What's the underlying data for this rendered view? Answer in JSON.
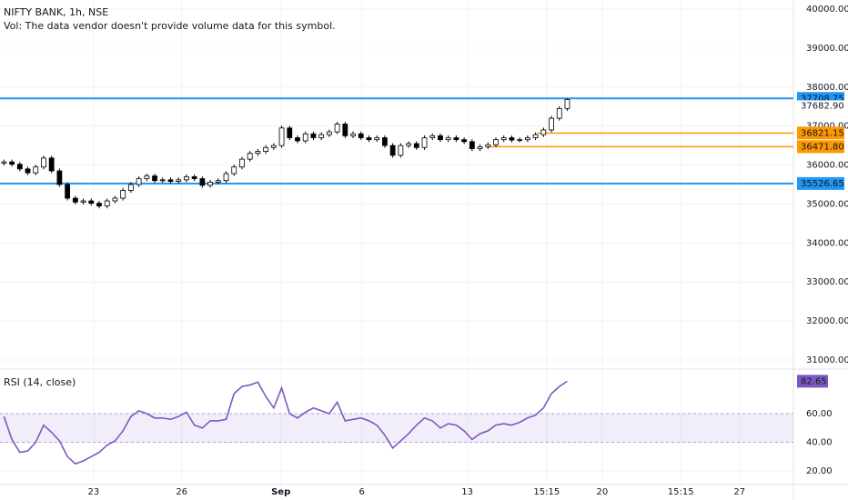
{
  "chart_data": [
    {
      "type": "candlestick",
      "title": "NIFTY BANK, 1h, NSE",
      "subtitle": "Vol: The data vendor doesn't provide volume data for this symbol.",
      "open": [
        36050,
        36080,
        36020,
        35900,
        35800,
        35950,
        36180,
        35850,
        35500,
        35150,
        35050,
        35080,
        35020,
        34950,
        35080,
        35150,
        35350,
        35500,
        35650,
        35720,
        35600,
        35620,
        35580,
        35620,
        35700,
        35650,
        35480,
        35560,
        35600,
        35780,
        35950,
        36150,
        36300,
        36350,
        36450,
        36500,
        36950,
        36700,
        36620,
        36800,
        36700,
        36780,
        36850,
        37050,
        36750,
        36800,
        36700,
        36650,
        36700,
        36500,
        36250,
        36500,
        36550,
        36450,
        36700,
        36750,
        36650,
        36700,
        36650,
        36600,
        36420,
        36470,
        36520,
        36650,
        36700,
        36640,
        36650,
        36700,
        36780,
        36900,
        37200,
        37450
      ],
      "high": [
        36140,
        36140,
        36080,
        35960,
        36010,
        36240,
        36240,
        35910,
        35560,
        35210,
        35140,
        35140,
        35080,
        35140,
        35210,
        35410,
        35560,
        35710,
        35780,
        35780,
        35680,
        35680,
        35680,
        35760,
        35760,
        35710,
        35620,
        35660,
        35840,
        36010,
        36210,
        36360,
        36410,
        36510,
        36560,
        37010,
        37010,
        36760,
        36860,
        36860,
        36840,
        36910,
        37110,
        37110,
        36860,
        36860,
        36760,
        36760,
        36760,
        36560,
        36560,
        36610,
        36610,
        36760,
        36810,
        36810,
        36760,
        36760,
        36710,
        36660,
        36530,
        36580,
        36710,
        36760,
        36760,
        36710,
        36760,
        36840,
        36960,
        37260,
        37510,
        37710
      ],
      "low": [
        35990,
        35960,
        35840,
        35740,
        35740,
        35890,
        35790,
        35440,
        35090,
        34990,
        34990,
        34960,
        34890,
        34890,
        35020,
        35090,
        35290,
        35440,
        35590,
        35540,
        35540,
        35520,
        35520,
        35560,
        35590,
        35420,
        35420,
        35500,
        35540,
        35720,
        35890,
        36090,
        36240,
        36290,
        36390,
        36440,
        36640,
        36560,
        36560,
        36640,
        36640,
        36720,
        36790,
        36690,
        36690,
        36640,
        36590,
        36590,
        36440,
        36190,
        36190,
        36440,
        36390,
        36390,
        36640,
        36590,
        36590,
        36590,
        36540,
        36360,
        36360,
        36410,
        36460,
        36590,
        36580,
        36580,
        36590,
        36640,
        36720,
        36840,
        37140,
        37390
      ],
      "close": [
        36080,
        36020,
        35900,
        35800,
        35950,
        36180,
        35850,
        35500,
        35150,
        35050,
        35080,
        35020,
        34950,
        35080,
        35150,
        35350,
        35500,
        35650,
        35720,
        35600,
        35620,
        35580,
        35620,
        35700,
        35650,
        35480,
        35560,
        35600,
        35780,
        35950,
        36150,
        36300,
        36350,
        36450,
        36500,
        36950,
        36700,
        36620,
        36800,
        36700,
        36780,
        36850,
        37050,
        36750,
        36800,
        36700,
        36650,
        36700,
        36500,
        36250,
        36500,
        36550,
        36450,
        36700,
        36750,
        36650,
        36700,
        36650,
        36600,
        36420,
        36470,
        36520,
        36650,
        36700,
        36640,
        36650,
        36700,
        36780,
        36900,
        37200,
        37450,
        37682.9
      ],
      "last_label": "37682.90",
      "xlim": [
        0,
        100
      ],
      "ylim": [
        30790,
        40233
      ],
      "yticks": [
        {
          "value": 40000,
          "label": "40000.00"
        },
        {
          "value": 39000,
          "label": "39000.00"
        },
        {
          "value": 38000,
          "label": "38000.00"
        },
        {
          "value": 37000,
          "label": "37000.00"
        },
        {
          "value": 36000,
          "label": "36000.00"
        },
        {
          "value": 35000,
          "label": "35000.00"
        },
        {
          "value": 34000,
          "label": "34000.00"
        },
        {
          "value": 33000,
          "label": "33000.00"
        },
        {
          "value": 32000,
          "label": "32000.00"
        },
        {
          "value": 31000,
          "label": "31000.00"
        }
      ],
      "levels": [
        {
          "value": 37708.75,
          "label": "37708.75",
          "color": "#2196f3",
          "x_start": 0
        },
        {
          "value": 36821.15,
          "label": "36821.15",
          "color": "#ff9800",
          "x_start": 67.7
        },
        {
          "value": 36471.8,
          "label": "36471.80",
          "color": "#ff9800",
          "x_start": 61.4
        },
        {
          "value": 35526.65,
          "label": "35526.65",
          "color": "#2196f3",
          "x_start": 0
        }
      ],
      "grid": true
    },
    {
      "type": "line",
      "title": "RSI (14, close)",
      "color": "#7e57c2",
      "values": [
        58,
        42,
        33,
        34,
        40,
        52,
        47,
        41,
        30,
        25,
        27,
        30,
        33,
        38,
        41,
        48,
        58,
        62,
        60,
        57,
        57,
        56,
        58,
        61,
        52,
        50,
        55,
        55,
        56,
        74,
        79,
        80,
        82,
        72,
        64,
        78,
        60,
        57,
        61,
        64,
        62,
        60,
        68,
        55,
        56,
        57,
        55,
        52,
        45,
        36,
        41,
        46,
        52,
        57,
        55,
        50,
        53,
        52,
        48,
        42,
        46,
        48,
        52,
        53,
        52,
        54,
        57,
        59,
        64,
        74,
        79,
        82.65
      ],
      "band": [
        40,
        60
      ],
      "xlim": [
        0,
        100
      ],
      "ylim": [
        10.5,
        90.5
      ],
      "yticks": [
        {
          "value": 60,
          "label": "60.00"
        },
        {
          "value": 40,
          "label": "40.00"
        },
        {
          "value": 20,
          "label": "20.00"
        }
      ],
      "xticks": [
        {
          "value": 11.8,
          "label": "23"
        },
        {
          "value": 22.9,
          "label": "26"
        },
        {
          "value": 35.4,
          "label": "Sep"
        },
        {
          "value": 45.6,
          "label": "6"
        },
        {
          "value": 58.9,
          "label": "13"
        },
        {
          "value": 68.9,
          "label": "15:15"
        },
        {
          "value": 75.9,
          "label": "20"
        },
        {
          "value": 85.8,
          "label": "15:15"
        },
        {
          "value": 93.2,
          "label": "27"
        }
      ]
    }
  ]
}
